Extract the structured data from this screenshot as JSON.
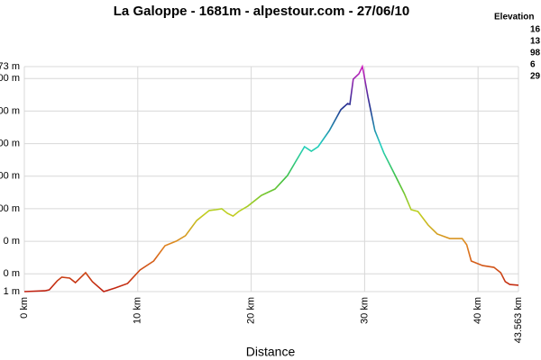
{
  "chart_data": {
    "type": "line",
    "title": "La Galoppe - 1681m - alpestour.com - 27/06/10",
    "x_label": "Distance",
    "legend_title": "Elevation",
    "legend_items": [
      {
        "label": "16",
        "color": "#d020c0"
      },
      {
        "label": "13",
        "color": "#203090"
      },
      {
        "label": "98",
        "color": "#20d0c0"
      },
      {
        "label": "6",
        "color": "#c0d020"
      },
      {
        "label": "29",
        "color": "#c02010"
      }
    ],
    "x": [
      0,
      1.8,
      2.2,
      2.9,
      3.3,
      4.0,
      4.5,
      5.4,
      6.0,
      7.0,
      8.0,
      9.1,
      10.2,
      11.4,
      12.4,
      13.4,
      14.2,
      15.2,
      16.3,
      16.9,
      17.4,
      17.9,
      18.4,
      18.9,
      19.7,
      20.9,
      22.1,
      23.2,
      23.9,
      24.7,
      25.3,
      25.9,
      26.9,
      27.9,
      28.5,
      28.7,
      29.0,
      29.5,
      29.8,
      29.9,
      30.3,
      30.9,
      31.7,
      32.5,
      33.5,
      34.1,
      34.7,
      35.6,
      36.4,
      37.5,
      38.6,
      39.0,
      39.4,
      40.4,
      41.4,
      42.0,
      42.4,
      42.8,
      43.563
    ],
    "series": [
      {
        "values": [
          291,
          296,
          302,
          357,
          380,
          374,
          346,
          407,
          352,
          291,
          313,
          341,
          424,
          479,
          573,
          601,
          634,
          728,
          789,
          794,
          800,
          772,
          755,
          783,
          816,
          882,
          921,
          1004,
          1087,
          1181,
          1153,
          1181,
          1281,
          1408,
          1446,
          1441,
          1596,
          1629,
          1673,
          1640,
          1485,
          1281,
          1142,
          1032,
          893,
          794,
          783,
          700,
          645,
          617,
          617,
          579,
          479,
          451,
          440,
          407,
          352,
          335,
          330
        ]
      }
    ],
    "xlim": [
      0,
      43.563
    ],
    "xticks": [
      {
        "value": 0,
        "label": "0 km"
      },
      {
        "value": 10,
        "label": "10 km"
      },
      {
        "value": 20,
        "label": "20 km"
      },
      {
        "value": 30,
        "label": "30 km"
      },
      {
        "value": 40,
        "label": "40 km"
      },
      {
        "value": 43.563,
        "label": "43.563 km"
      }
    ],
    "ylim": [
      291,
      1673
    ],
    "yticks": [
      {
        "value": 1673,
        "label": "73 m"
      },
      {
        "value": 1600,
        "label": "00 m"
      },
      {
        "value": 1400,
        "label": "00 m"
      },
      {
        "value": 1200,
        "label": "00 m"
      },
      {
        "value": 1000,
        "label": "00 m"
      },
      {
        "value": 800,
        "label": "00 m"
      },
      {
        "value": 600,
        "label": "0 m"
      },
      {
        "value": 400,
        "label": "0 m"
      },
      {
        "value": 291,
        "label": "1 m"
      }
    ],
    "grid": true
  }
}
